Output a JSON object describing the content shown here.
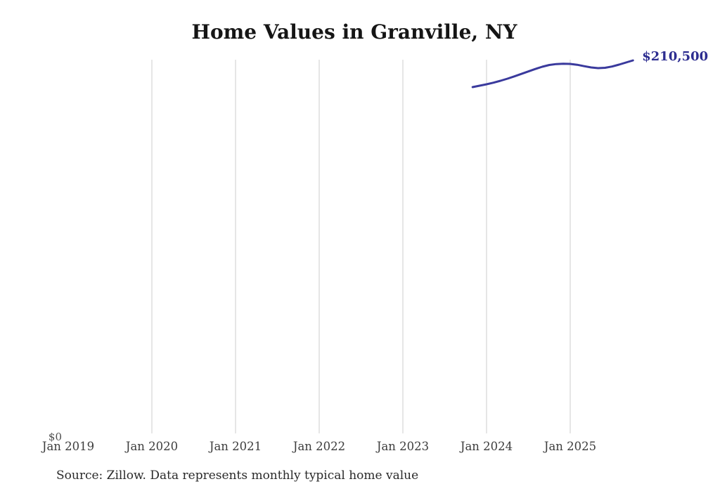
{
  "chart_data": {
    "type": "line",
    "title": "Home Values in Granville, NY",
    "source_note": "Source: Zillow. Data represents monthly typical home value",
    "end_label": "$210,500",
    "legend": "none",
    "grid": "vertical-only",
    "x_axis": {
      "ticks": [
        {
          "label": "Jan 2019",
          "gridline": false
        },
        {
          "label": "Jan 2020",
          "gridline": true
        },
        {
          "label": "Jan 2021",
          "gridline": true
        },
        {
          "label": "Jan 2022",
          "gridline": true
        },
        {
          "label": "Jan 2023",
          "gridline": true
        },
        {
          "label": "Jan 2024",
          "gridline": true
        },
        {
          "label": "Jan 2025",
          "gridline": true
        }
      ]
    },
    "y_axis": {
      "min": 0,
      "max": 211000,
      "ticks": [
        {
          "label": "$0",
          "value": 0
        }
      ]
    },
    "series": [
      {
        "name": "Monthly typical home value",
        "months": [
          "Nov 2023",
          "Dec 2023",
          "Jan 2024",
          "Feb 2024",
          "Mar 2024",
          "Apr 2024",
          "May 2024",
          "Jun 2024",
          "Jul 2024",
          "Aug 2024",
          "Sep 2024",
          "Oct 2024",
          "Nov 2024",
          "Dec 2024",
          "Jan 2025",
          "Feb 2025",
          "Mar 2025",
          "Apr 2025",
          "May 2025",
          "Jun 2025",
          "Jul 2025",
          "Aug 2025",
          "Sep 2025",
          "Oct 2025"
        ],
        "values": [
          195300,
          196100,
          196900,
          197800,
          198900,
          200100,
          201400,
          202800,
          204200,
          205600,
          206900,
          207900,
          208400,
          208600,
          208500,
          208000,
          207200,
          206500,
          206100,
          206300,
          207000,
          208100,
          209300,
          210500
        ]
      }
    ]
  },
  "colors": {
    "line": "#3a3a9d",
    "end_label": "#2d2d90",
    "gridline": "#cdcdcd",
    "title": "#151515",
    "tick_label": "#3d3d3d",
    "y_label": "#4f4f4f",
    "source": "#2a2a2a"
  }
}
